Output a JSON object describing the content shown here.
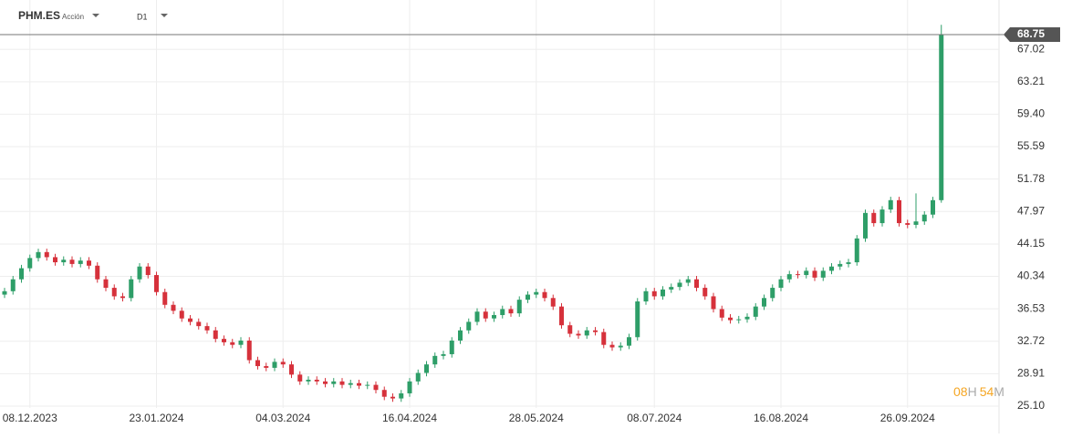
{
  "chart_data": {
    "type": "candlestick",
    "symbol": "PHM.ES",
    "instrument": "Acción",
    "timeframe": "D1",
    "up_color": "#2e9e68",
    "down_color": "#d6313b",
    "ylim": [
      23.6,
      71.75
    ],
    "yticks": [
      {
        "value": 25.1,
        "label": "25.10"
      },
      28.91,
      32.72,
      36.53,
      40.34,
      44.15,
      47.97,
      51.78,
      55.59,
      {
        "value": 59.4,
        "label": "59.40"
      },
      63.21,
      67.02
    ],
    "xticks": [
      {
        "value": 3,
        "label": "08.12.2023"
      },
      {
        "value": 18,
        "label": "23.01.2024"
      },
      {
        "value": 33,
        "label": "04.03.2024"
      },
      {
        "value": 48,
        "label": "16.04.2024"
      },
      {
        "value": 63,
        "label": "28.05.2024"
      },
      {
        "value": 77,
        "label": "08.07.2024"
      },
      {
        "value": 92,
        "label": "16.08.2024"
      },
      {
        "value": 107,
        "label": "26.09.2024"
      }
    ],
    "grid": true,
    "last_price": 68.75,
    "timer": {
      "hours": "08",
      "hours_unit": "H",
      "minutes": "54",
      "minutes_unit": "M"
    },
    "series": [
      {
        "name": "PHM.ES",
        "open": [
          38.2,
          38.6,
          40.0,
          41.3,
          42.5,
          43.2,
          42.6,
          42.0,
          42.3,
          41.8,
          42.2,
          41.6,
          40.0,
          39.0,
          38.0,
          37.8,
          40.0,
          41.5,
          40.5,
          38.5,
          37.0,
          36.3,
          35.4,
          35.0,
          34.5,
          34.0,
          33.0,
          32.6,
          32.3,
          32.8,
          30.5,
          29.8,
          29.6,
          30.3,
          30.0,
          28.8,
          28.0,
          28.2,
          28.0,
          27.7,
          28.0,
          27.6,
          27.8,
          27.5,
          27.6,
          27.0,
          26.2,
          26.0,
          26.6,
          28.0,
          29.0,
          30.0,
          31.0,
          31.2,
          32.8,
          34.0,
          35.0,
          36.2,
          35.4,
          35.8,
          36.5,
          36.0,
          37.6,
          38.2,
          38.5,
          37.8,
          36.8,
          34.6,
          33.6,
          33.4,
          34.0,
          33.8,
          32.3,
          32.0,
          32.2,
          33.2,
          37.4,
          38.6,
          38.0,
          38.8,
          39.1,
          39.6,
          40.0,
          39.0,
          38.0,
          36.5,
          35.5,
          35.2,
          35.3,
          35.6,
          36.8,
          37.8,
          39.0,
          40.0,
          40.6,
          40.5,
          41.0,
          40.2,
          41.0,
          41.5,
          41.8,
          42.0,
          44.8,
          47.8,
          46.6,
          48.2,
          49.3,
          46.6,
          46.4,
          46.8,
          47.6,
          49.3
        ],
        "high": [
          39.0,
          40.4,
          41.7,
          42.9,
          43.6,
          43.6,
          43.0,
          42.7,
          42.7,
          42.6,
          42.6,
          42.0,
          40.4,
          39.4,
          38.4,
          40.4,
          41.9,
          41.9,
          40.9,
          38.9,
          37.4,
          36.7,
          35.8,
          35.4,
          34.9,
          34.4,
          33.4,
          33.0,
          33.2,
          33.2,
          30.9,
          30.2,
          30.7,
          30.7,
          30.4,
          29.2,
          28.6,
          28.6,
          28.4,
          28.4,
          28.4,
          28.2,
          28.2,
          28.0,
          28.0,
          27.4,
          26.6,
          27.0,
          28.4,
          29.4,
          30.4,
          31.4,
          31.6,
          33.2,
          34.4,
          35.4,
          36.6,
          36.6,
          36.2,
          36.9,
          36.9,
          38.0,
          38.6,
          38.9,
          38.9,
          38.2,
          37.2,
          35.0,
          34.0,
          34.4,
          34.4,
          34.2,
          32.7,
          32.6,
          33.6,
          37.8,
          39.0,
          39.0,
          39.2,
          39.5,
          40.0,
          40.4,
          40.4,
          39.4,
          38.4,
          36.9,
          35.9,
          35.7,
          36.0,
          37.2,
          38.2,
          39.4,
          40.4,
          41.0,
          41.0,
          41.4,
          41.4,
          41.4,
          41.9,
          42.2,
          42.4,
          45.2,
          48.2,
          48.2,
          48.6,
          49.7,
          49.7,
          47.0,
          50.1,
          48.0,
          49.7,
          69.9
        ],
        "low": [
          37.8,
          38.2,
          39.6,
          40.9,
          42.1,
          42.2,
          41.6,
          41.6,
          41.4,
          41.4,
          41.2,
          39.6,
          38.6,
          37.6,
          37.4,
          37.4,
          39.6,
          40.1,
          38.1,
          36.6,
          35.9,
          35.0,
          34.6,
          34.1,
          33.6,
          32.6,
          32.2,
          31.9,
          31.9,
          30.1,
          29.4,
          29.2,
          29.2,
          29.6,
          28.4,
          27.6,
          27.6,
          27.6,
          27.3,
          27.3,
          27.2,
          27.2,
          27.1,
          27.1,
          26.6,
          25.8,
          25.6,
          25.6,
          26.2,
          27.6,
          28.6,
          29.6,
          30.6,
          30.8,
          32.4,
          33.6,
          34.6,
          35.0,
          35.0,
          35.4,
          35.6,
          35.6,
          37.2,
          37.8,
          37.4,
          36.4,
          34.2,
          33.2,
          33.0,
          33.0,
          33.4,
          31.9,
          31.6,
          31.6,
          31.8,
          32.8,
          37.0,
          37.6,
          37.6,
          38.4,
          38.7,
          39.2,
          38.6,
          37.6,
          36.1,
          35.1,
          34.8,
          34.8,
          34.9,
          35.2,
          36.4,
          37.4,
          38.6,
          39.6,
          40.1,
          40.1,
          39.8,
          39.8,
          40.6,
          41.1,
          41.4,
          41.6,
          44.4,
          46.2,
          46.2,
          47.8,
          46.2,
          46.0,
          46.0,
          46.4,
          47.2,
          49.0
        ],
        "close": [
          38.6,
          40.0,
          41.3,
          42.5,
          43.2,
          42.6,
          42.0,
          42.3,
          41.8,
          42.2,
          41.6,
          40.0,
          39.0,
          38.0,
          37.8,
          40.0,
          41.5,
          40.5,
          38.5,
          37.0,
          36.3,
          35.4,
          35.0,
          34.5,
          34.0,
          33.0,
          32.6,
          32.3,
          32.8,
          30.5,
          29.8,
          29.6,
          30.3,
          30.0,
          28.8,
          28.0,
          28.2,
          28.0,
          27.7,
          28.0,
          27.6,
          27.8,
          27.5,
          27.6,
          27.0,
          26.2,
          26.0,
          26.6,
          28.0,
          29.0,
          30.0,
          31.0,
          31.2,
          32.8,
          34.0,
          35.0,
          36.2,
          35.4,
          35.8,
          36.5,
          36.0,
          37.6,
          38.2,
          38.5,
          37.8,
          36.8,
          34.6,
          33.6,
          33.4,
          34.0,
          33.8,
          32.3,
          32.0,
          32.2,
          33.2,
          37.4,
          38.6,
          38.0,
          38.8,
          39.1,
          39.6,
          40.0,
          39.0,
          38.0,
          36.5,
          35.5,
          35.2,
          35.3,
          35.6,
          36.8,
          37.8,
          39.0,
          40.0,
          40.6,
          40.5,
          41.0,
          40.2,
          41.0,
          41.5,
          41.8,
          42.0,
          44.8,
          47.8,
          46.6,
          48.2,
          49.3,
          46.6,
          46.4,
          46.8,
          47.6,
          49.3,
          68.75
        ]
      }
    ]
  }
}
